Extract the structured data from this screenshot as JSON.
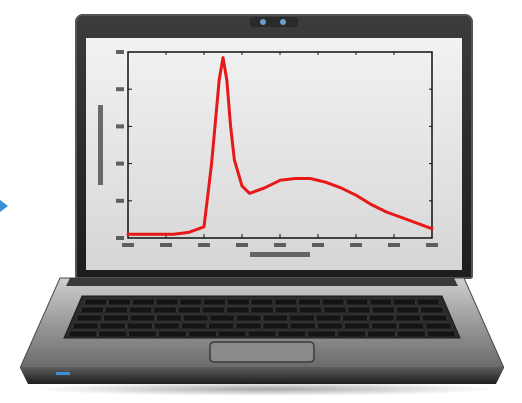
{
  "chart_data": {
    "type": "line",
    "title": "",
    "xlabel": "",
    "ylabel": "",
    "x": [
      400,
      420,
      440,
      460,
      480,
      500,
      510,
      520,
      525,
      530,
      535,
      540,
      550,
      560,
      580,
      600,
      620,
      640,
      660,
      680,
      700,
      720,
      740,
      760,
      780,
      800
    ],
    "values": [
      0.02,
      0.02,
      0.02,
      0.02,
      0.03,
      0.06,
      0.4,
      0.85,
      0.97,
      0.85,
      0.6,
      0.42,
      0.28,
      0.24,
      0.27,
      0.31,
      0.32,
      0.32,
      0.3,
      0.27,
      0.23,
      0.18,
      0.14,
      0.11,
      0.08,
      0.05
    ],
    "xlim": [
      400,
      800
    ],
    "ylim": [
      0,
      1
    ],
    "series_color": "#e81818",
    "grid": false,
    "legend": "none"
  }
}
